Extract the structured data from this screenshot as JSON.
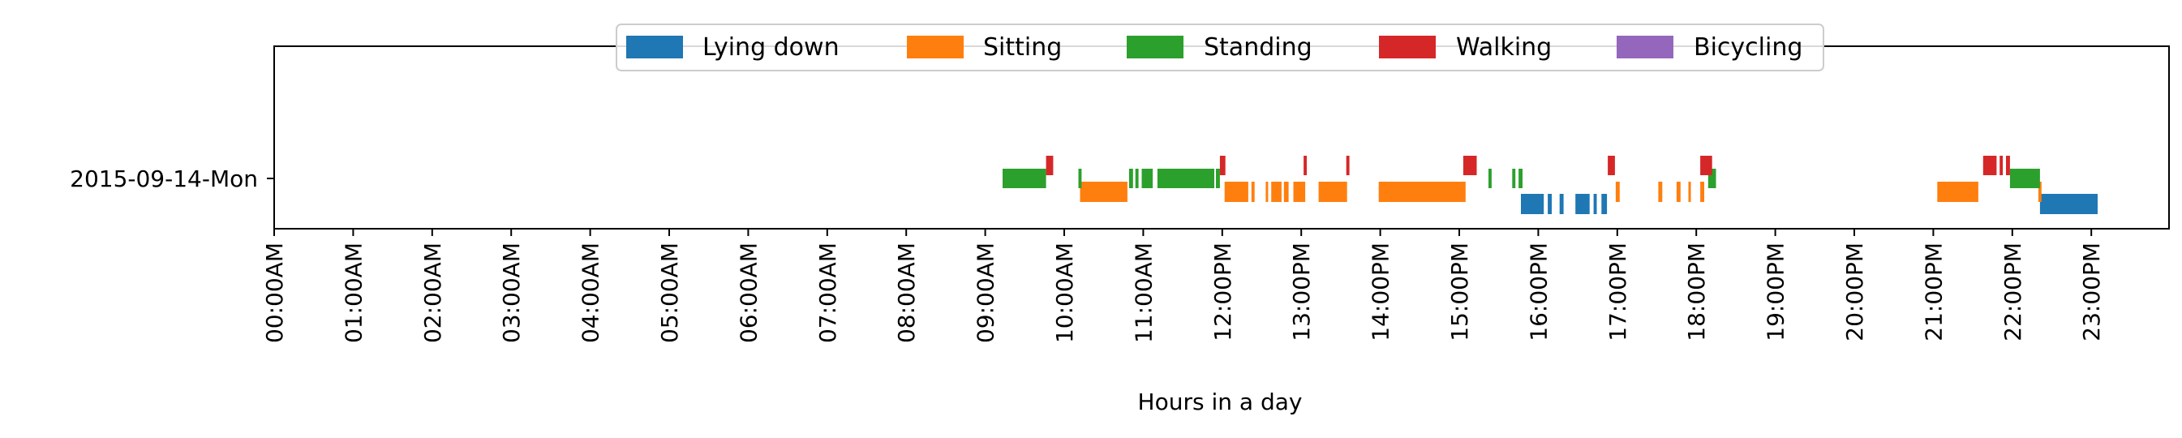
{
  "chart_data": {
    "type": "timeline",
    "title": "",
    "xlabel": "Hours in a day",
    "ylabel": "",
    "xlim": [
      0,
      24
    ],
    "x_ticks": [
      {
        "value": 0,
        "label": "00:00AM"
      },
      {
        "value": 1,
        "label": "01:00AM"
      },
      {
        "value": 2,
        "label": "02:00AM"
      },
      {
        "value": 3,
        "label": "03:00AM"
      },
      {
        "value": 4,
        "label": "04:00AM"
      },
      {
        "value": 5,
        "label": "05:00AM"
      },
      {
        "value": 6,
        "label": "06:00AM"
      },
      {
        "value": 7,
        "label": "07:00AM"
      },
      {
        "value": 8,
        "label": "08:00AM"
      },
      {
        "value": 9,
        "label": "09:00AM"
      },
      {
        "value": 10,
        "label": "10:00AM"
      },
      {
        "value": 11,
        "label": "11:00AM"
      },
      {
        "value": 12,
        "label": "12:00PM"
      },
      {
        "value": 13,
        "label": "13:00PM"
      },
      {
        "value": 14,
        "label": "14:00PM"
      },
      {
        "value": 15,
        "label": "15:00PM"
      },
      {
        "value": 16,
        "label": "16:00PM"
      },
      {
        "value": 17,
        "label": "17:00PM"
      },
      {
        "value": 18,
        "label": "18:00PM"
      },
      {
        "value": 19,
        "label": "19:00PM"
      },
      {
        "value": 20,
        "label": "20:00PM"
      },
      {
        "value": 21,
        "label": "21:00PM"
      },
      {
        "value": 22,
        "label": "22:00PM"
      },
      {
        "value": 23,
        "label": "23:00PM"
      }
    ],
    "y_categories": [
      "2015-09-14-Mon"
    ],
    "legend_position": "top-center",
    "grid": false,
    "series": [
      {
        "name": "Lying down",
        "color": "#1f77b4",
        "intervals": [
          [
            15.78,
            16.07
          ],
          [
            16.12,
            16.17
          ],
          [
            16.27,
            16.32
          ],
          [
            16.47,
            16.65
          ],
          [
            16.7,
            16.74
          ],
          [
            16.8,
            16.87
          ],
          [
            22.35,
            23.08
          ]
        ]
      },
      {
        "name": "Sitting",
        "color": "#ff7f0e",
        "intervals": [
          [
            10.2,
            10.8
          ],
          [
            12.03,
            12.33
          ],
          [
            12.37,
            12.41
          ],
          [
            12.55,
            12.58
          ],
          [
            12.62,
            12.75
          ],
          [
            12.78,
            12.84
          ],
          [
            12.9,
            13.05
          ],
          [
            13.22,
            13.58
          ],
          [
            13.98,
            15.08
          ],
          [
            16.98,
            17.03
          ],
          [
            17.52,
            17.57
          ],
          [
            17.75,
            17.8
          ],
          [
            17.9,
            17.93
          ],
          [
            18.05,
            18.1
          ],
          [
            21.05,
            21.57
          ],
          [
            22.33,
            22.37
          ]
        ]
      },
      {
        "name": "Standing",
        "color": "#2ca02c",
        "intervals": [
          [
            9.22,
            9.77
          ],
          [
            10.18,
            10.22
          ],
          [
            10.82,
            10.87
          ],
          [
            10.9,
            10.94
          ],
          [
            10.98,
            11.12
          ],
          [
            11.18,
            11.9
          ],
          [
            11.92,
            11.97
          ],
          [
            15.37,
            15.41
          ],
          [
            15.67,
            15.71
          ],
          [
            15.75,
            15.8
          ],
          [
            18.15,
            18.25
          ],
          [
            21.97,
            22.35
          ]
        ]
      },
      {
        "name": "Walking",
        "color": "#d62728",
        "intervals": [
          [
            9.77,
            9.86
          ],
          [
            11.97,
            12.04
          ],
          [
            13.03,
            13.07
          ],
          [
            13.57,
            13.61
          ],
          [
            15.05,
            15.22
          ],
          [
            16.88,
            16.97
          ],
          [
            18.05,
            18.2
          ],
          [
            21.63,
            21.8
          ],
          [
            21.84,
            21.88
          ],
          [
            21.92,
            21.97
          ]
        ]
      },
      {
        "name": "Bicycling",
        "color": "#9467bd",
        "intervals": []
      }
    ]
  }
}
